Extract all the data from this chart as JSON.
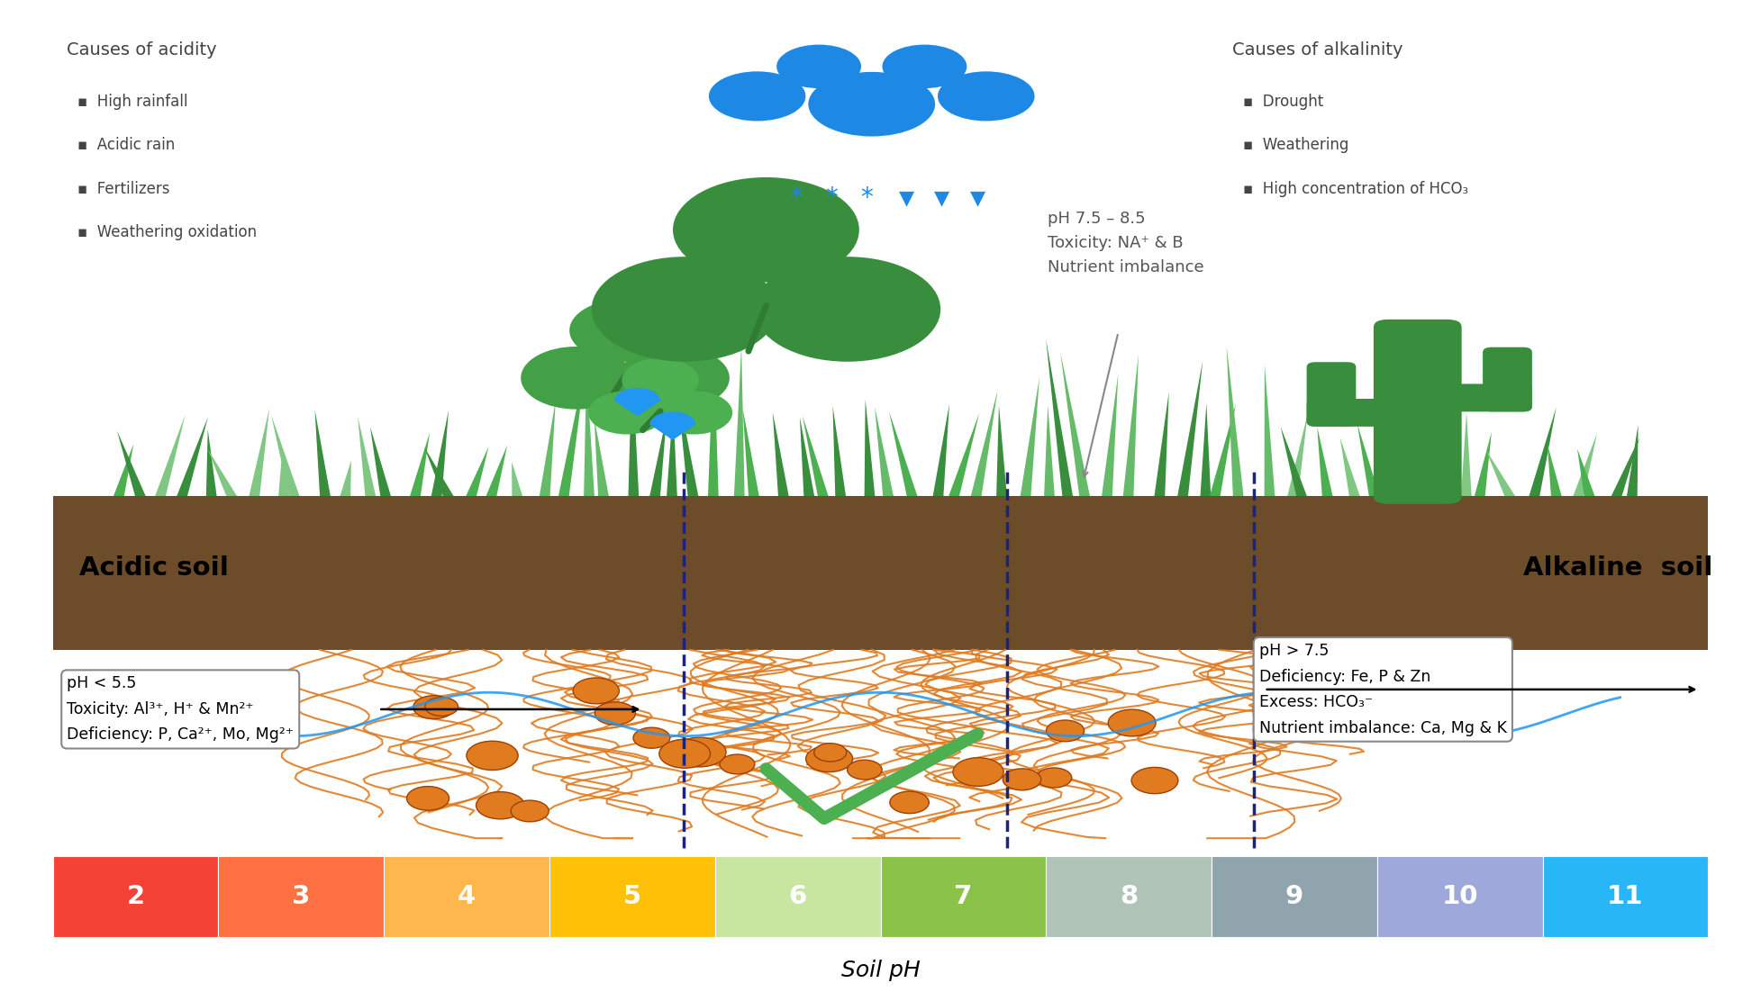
{
  "bg_color": "#ffffff",
  "fig_width": 19.55,
  "fig_height": 11.02,
  "ph_colors": [
    "#f44336",
    "#ff7043",
    "#ffb74d",
    "#ffc107",
    "#c8e6a0",
    "#8bc34a",
    "#b0c4b8",
    "#90a4ae",
    "#9fa8da",
    "#29b6f6"
  ],
  "ph_labels": [
    "2",
    "3",
    "4",
    "5",
    "6",
    "7",
    "8",
    "9",
    "10",
    "11"
  ],
  "soil_label": "Soil pH",
  "acidic_title": "Causes of acidity",
  "acidic_items": [
    "High rainfall",
    "Acidic rain",
    "Fertilizers",
    "Weathering oxidation"
  ],
  "alkaline_title": "Causes of alkalinity",
  "alkaline_items": [
    "Drought",
    "Weathering",
    "High concentration of HCO₃"
  ],
  "acidic_soil_label": "Acidic soil",
  "alkaline_soil_label": "Alkaline  soil",
  "center_annotation": "pH 7.5 – 8.5\nToxicity: NA⁺ & B\nNutrient imbalance",
  "left_box_text": "pH < 5.5\nToxicity: Al³⁺, H⁺ & Mn²⁺\nDeficiency: P, Ca²⁺, Mo, Mg²⁺",
  "right_box_text": "pH > 7.5\nDeficiency: Fe, P & Zn\nExcess: HCO₃⁻\nNutrient imbalance: Ca, Mg & K",
  "dashed_line_color": "#1a237e",
  "soil_color": "#6d4c2a",
  "root_color": "#e07b20",
  "grass_color": "#4caf50",
  "water_color": "#2196f3",
  "checkmark_color": "#4caf50",
  "cactus_color": "#388e3c",
  "cloud_color": "#1e88e5"
}
